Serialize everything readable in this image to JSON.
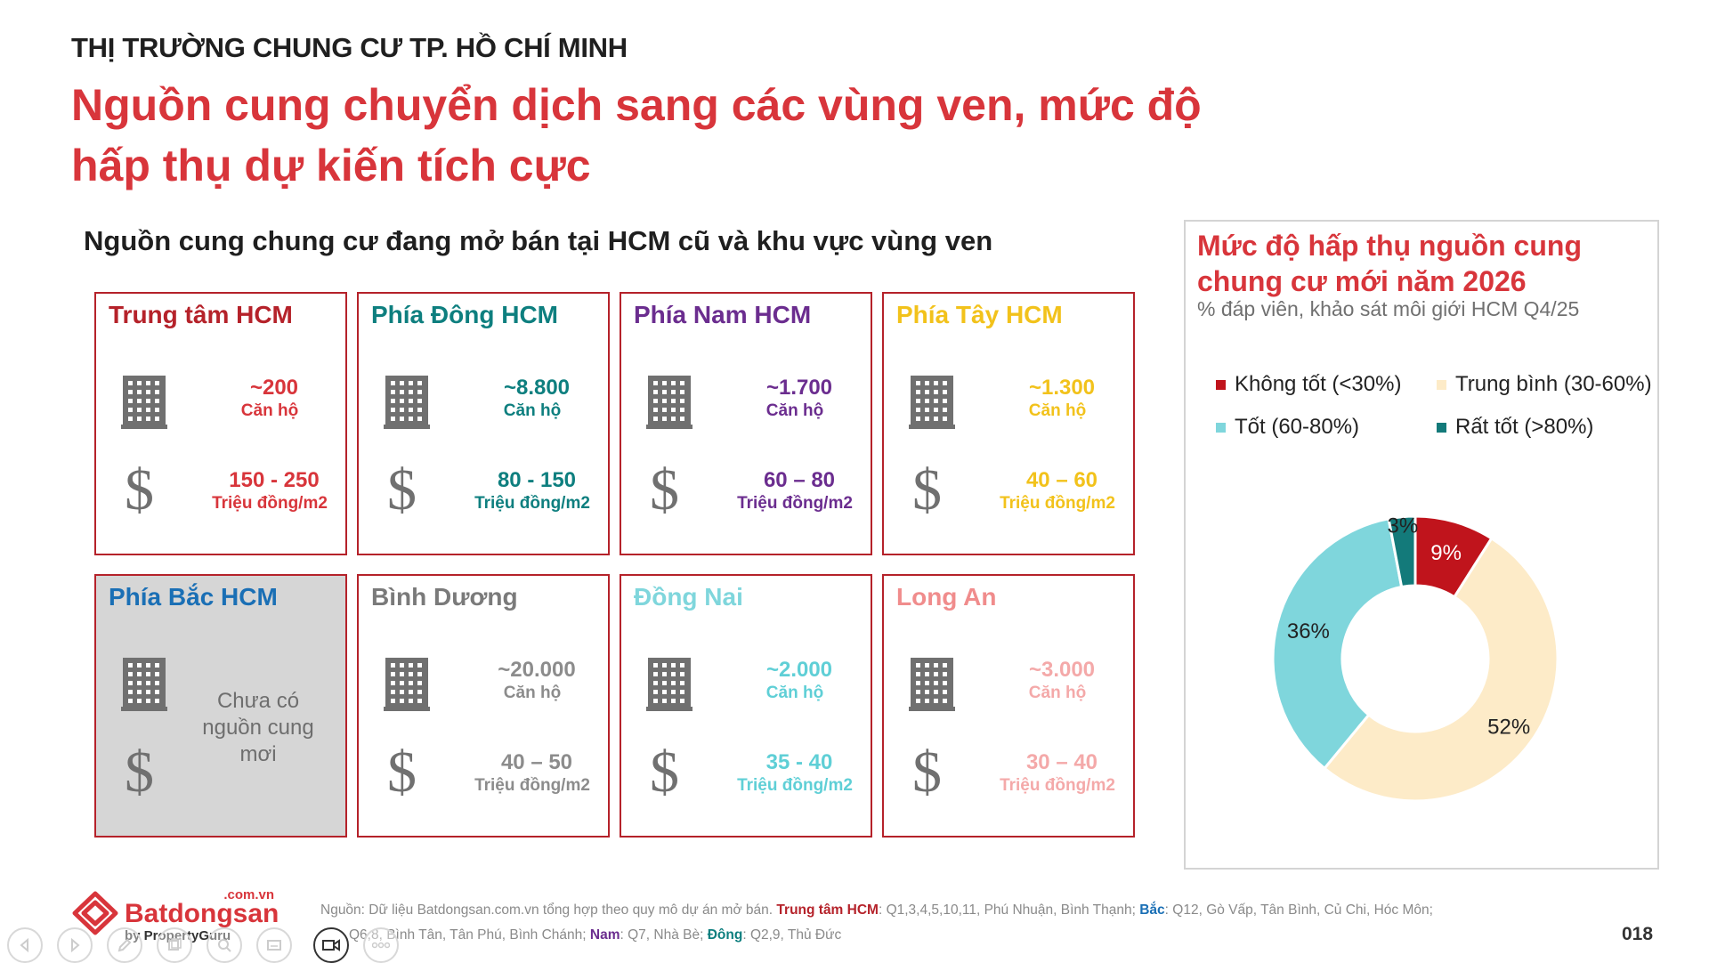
{
  "header": {
    "supertitle": "THỊ TRƯỜNG CHUNG CƯ TP. HỒ CHÍ MINH",
    "headline_line1": "Nguồn cung chuyển dịch sang các vùng ven, mức độ",
    "headline_line2": "hấp thụ dự kiến tích cực"
  },
  "section_title": "Nguồn cung chung cư đang mở bán tại HCM cũ và khu vực vùng ven",
  "regions": [
    {
      "name": "Trung tâm HCM",
      "units": "~200",
      "units_label": "Căn hộ",
      "price": "150 - 250",
      "price_unit": "Triệu đồng/m2",
      "title_color": "#b5222a",
      "value_color": "#d8353b"
    },
    {
      "name": "Phía Đông HCM",
      "units": "~8.800",
      "units_label": "Căn hộ",
      "price": "80 - 150",
      "price_unit": "Triệu đồng/m2",
      "title_color": "#0e7f7f",
      "value_color": "#0e7f7f"
    },
    {
      "name": "Phía Nam HCM",
      "units": "~1.700",
      "units_label": "Căn hộ",
      "price": "60 – 80",
      "price_unit": "Triệu đồng/m2",
      "title_color": "#6b2d8f",
      "value_color": "#6b2d8f"
    },
    {
      "name": "Phía Tây HCM",
      "units": "~1.300",
      "units_label": "Căn hộ",
      "price": "40 – 60",
      "price_unit": "Triệu đồng/m2",
      "title_color": "#f2c21b",
      "value_color": "#f2c21b"
    },
    {
      "name": "Phía Bắc HCM",
      "no_supply": "Chưa có nguồn cung mơi",
      "title_color": "#1a6fb5"
    },
    {
      "name": "Bình Dương",
      "units": "~20.000",
      "units_label": "Căn hộ",
      "price": "40 – 50",
      "price_unit": "Triệu đồng/m2",
      "title_color": "#7a7a7a",
      "value_color": "#8c8c8c"
    },
    {
      "name": "Đồng Nai",
      "units": "~2.000",
      "units_label": "Căn hộ",
      "price": "35 - 40",
      "price_unit": "Triệu đồng/m2",
      "title_color": "#7fd6dc",
      "value_color": "#5fcfd6"
    },
    {
      "name": "Long An",
      "units": "~3.000",
      "units_label": "Căn hộ",
      "price": "30 – 40",
      "price_unit": "Triệu đồng/m2",
      "title_color": "#f08c8c",
      "value_color": "#f4a9a9"
    }
  ],
  "chart_data": {
    "type": "pie",
    "variant": "donut",
    "title": "Mức độ hấp thụ nguồn cung chung cư mới năm 2026",
    "subtitle": "% đáp viên, khảo sát môi giới HCM Q4/25",
    "legend_position": "top",
    "categories": [
      "Không tốt (<30%)",
      "Trung bình (30-60%)",
      "Tốt (60-80%)",
      "Rất tốt (>80%)"
    ],
    "values": [
      9,
      52,
      36,
      3
    ],
    "labels": [
      "9%",
      "52%",
      "36%",
      "3%"
    ],
    "colors": [
      "#c0141c",
      "#fdebc8",
      "#7fd6dc",
      "#137a7a"
    ],
    "slice_order": [
      0,
      1,
      2,
      3
    ]
  },
  "footer": {
    "logo_domain": ".com.vn",
    "logo_name": "Batdongsan",
    "logo_by": "by PropertyGuru",
    "source_line1_prefix": "Nguồn: Dữ liệu Batdongsan.com.vn tổng hợp theo quy mô dự án mở bán.",
    "source_center_label": "Trung tâm HCM",
    "source_center_text": ": Q1,3,4,5,10,11, Phú Nhuận, Bình Thạnh;",
    "source_north_label": "Bắc",
    "source_north_text": ": Q12, Gò Vấp, Tân Bình, Củ Chi, Hóc Môn;",
    "source_line2_prefix": "Q6,8, Bình Tân, Tân Phú, Bình Chánh;",
    "source_south_label": "Nam",
    "source_south_text": ": Q7, Nhà Bè;",
    "source_east_label": "Đông",
    "source_east_text": ": Q2,9, Thủ Đức",
    "page_number": "018"
  },
  "colors": {
    "accent": "#d8353b",
    "border": "#b5222a"
  }
}
